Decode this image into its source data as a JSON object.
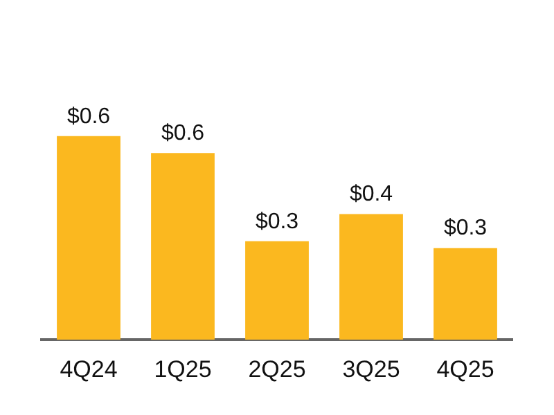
{
  "chart_data": {
    "type": "bar",
    "categories": [
      "4Q24",
      "1Q25",
      "2Q25",
      "3Q25",
      "4Q25"
    ],
    "values": [
      0.6,
      0.55,
      0.29,
      0.37,
      0.27
    ],
    "value_labels": [
      "$0.6",
      "$0.6",
      "$0.3",
      "$0.4",
      "$0.3"
    ],
    "color": "#fbb81f",
    "grid": false,
    "legend": false
  }
}
